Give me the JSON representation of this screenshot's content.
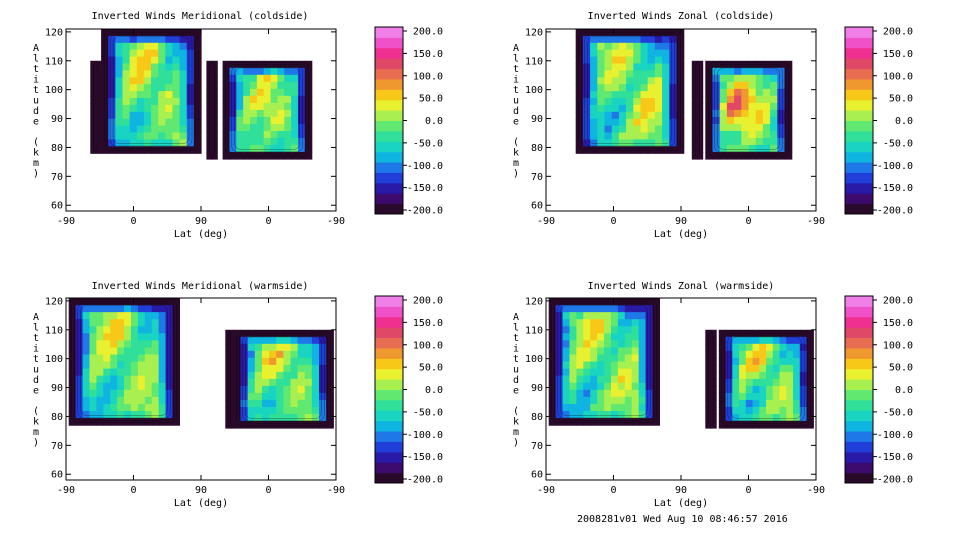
{
  "footer": "2008281v01 Wed Aug 10 08:46:57 2016",
  "colormap": {
    "ticks": [
      "200.0",
      "150.0",
      "100.0",
      "50.0",
      "0.0",
      "-50.0",
      "-100.0",
      "-150.0",
      "-200.0"
    ],
    "colors": [
      "#2a0a2a",
      "#3d0a6e",
      "#2a1aa8",
      "#1f3fd8",
      "#1e78e8",
      "#10b4e0",
      "#18d4c0",
      "#30e09a",
      "#60e870",
      "#a8f050",
      "#e8f030",
      "#f8c818",
      "#f09830",
      "#e86c50",
      "#e04868",
      "#f03090",
      "#f050c8",
      "#f080e8"
    ]
  },
  "chart_data": [
    {
      "type": "heatmap",
      "title": "Inverted Winds Meridional (coldside)",
      "xlabel": "Lat (deg)",
      "ylabel": "Altitude (km)",
      "xticks": [
        "-90",
        "0",
        "90",
        "0",
        "-90"
      ],
      "yticks": [
        "60",
        "70",
        "80",
        "90",
        "100",
        "110",
        "120"
      ],
      "ylim": [
        58,
        121
      ],
      "clim": [
        -200,
        200
      ],
      "colorbar": "right"
    },
    {
      "type": "heatmap",
      "title": "Inverted Winds Zonal (coldside)",
      "xlabel": "Lat (deg)",
      "ylabel": "Altitude (km)",
      "xticks": [
        "-90",
        "0",
        "90",
        "0",
        "-90"
      ],
      "yticks": [
        "60",
        "70",
        "80",
        "90",
        "100",
        "110",
        "120"
      ],
      "ylim": [
        58,
        121
      ],
      "clim": [
        -200,
        200
      ],
      "colorbar": "right"
    },
    {
      "type": "heatmap",
      "title": "Inverted Winds Meridional (warmside)",
      "xlabel": "Lat (deg)",
      "ylabel": "Altitude (km)",
      "xticks": [
        "-90",
        "0",
        "90",
        "0",
        "-90"
      ],
      "yticks": [
        "60",
        "70",
        "80",
        "90",
        "100",
        "110",
        "120"
      ],
      "ylim": [
        58,
        121
      ],
      "clim": [
        -200,
        200
      ],
      "colorbar": "right"
    },
    {
      "type": "heatmap",
      "title": "Inverted Winds Zonal (warmside)",
      "xlabel": "Lat (deg)",
      "ylabel": "Altitude (km)",
      "xticks": [
        "-90",
        "0",
        "90",
        "0",
        "-90"
      ],
      "yticks": [
        "60",
        "70",
        "80",
        "90",
        "100",
        "110",
        "120"
      ],
      "ylim": [
        58,
        121
      ],
      "clim": [
        -200,
        200
      ],
      "colorbar": "right"
    }
  ]
}
